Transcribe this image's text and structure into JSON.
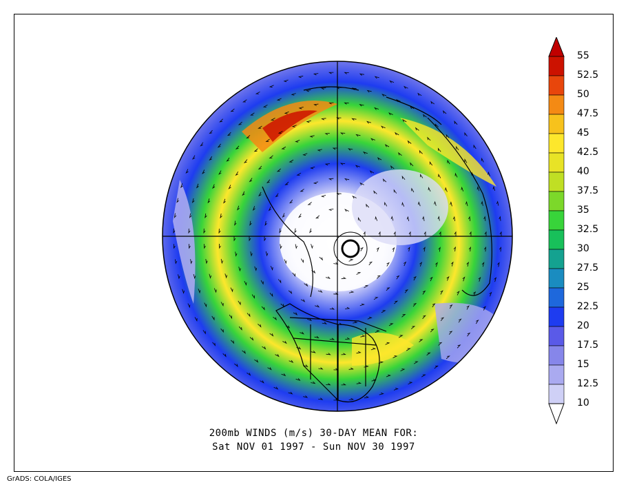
{
  "caption": {
    "line1": "200mb WINDS (m/s)   30-DAY MEAN FOR:",
    "line2": "Sat NOV 01 1997 - Sun NOV 30 1997"
  },
  "credit": "GrADS: COLA/IGES",
  "colorbar": {
    "levels": [
      "55",
      "52.5",
      "50",
      "47.5",
      "45",
      "42.5",
      "40",
      "37.5",
      "35",
      "32.5",
      "30",
      "27.5",
      "25",
      "22.5",
      "20",
      "17.5",
      "15",
      "12.5",
      "10"
    ],
    "colors": [
      "#cc1200",
      "#e8460c",
      "#f48a14",
      "#f7c21c",
      "#fde72c",
      "#e8e326",
      "#c0df24",
      "#7cd82a",
      "#38d43a",
      "#18c05a",
      "#14a290",
      "#1a8cc0",
      "#1e68dc",
      "#1e3cf0",
      "#5a5ae8",
      "#8686ea",
      "#aaaaf0",
      "#cfd0f6"
    ],
    "max_color": "#c00000"
  },
  "map": {
    "projection": "north-polar-stereographic",
    "background": "#ffffff",
    "grid": true
  }
}
